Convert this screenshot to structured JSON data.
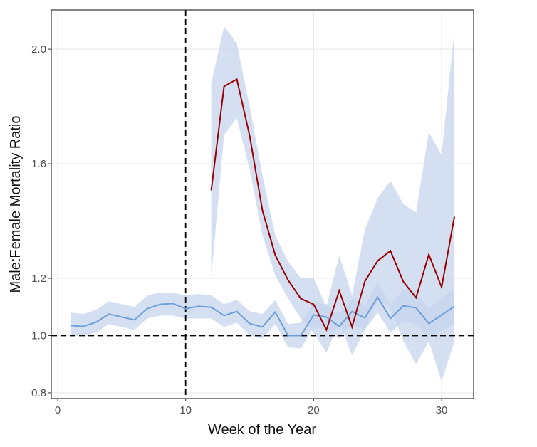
{
  "chart_data": {
    "type": "line",
    "x_label": "Week of the Year",
    "y_label": "Male:Female Mortality Ratio",
    "x": [
      1,
      2,
      3,
      4,
      5,
      6,
      7,
      8,
      9,
      10,
      11,
      12,
      13,
      14,
      15,
      16,
      17,
      18,
      19,
      20,
      21,
      22,
      23,
      24,
      25,
      26,
      27,
      28,
      29,
      30,
      31
    ],
    "series": [
      {
        "color": "#6f9fd8",
        "band_color": "#c5d6ec",
        "values": [
          1.035,
          1.032,
          1.047,
          1.075,
          1.065,
          1.055,
          1.094,
          1.109,
          1.112,
          1.094,
          1.102,
          1.099,
          1.07,
          1.084,
          1.042,
          1.03,
          1.082,
          1.0,
          1.0,
          1.072,
          1.065,
          1.032,
          1.084,
          1.062,
          1.134,
          1.06,
          1.104,
          1.097,
          1.042,
          1.072,
          1.102
        ],
        "lower": [
          1.0,
          1.0,
          1.01,
          1.04,
          1.03,
          1.02,
          1.06,
          1.07,
          1.07,
          1.06,
          1.06,
          1.06,
          1.03,
          1.045,
          1.0,
          0.99,
          1.04,
          0.96,
          0.955,
          1.03,
          1.02,
          0.99,
          1.04,
          1.02,
          1.08,
          1.01,
          1.05,
          1.04,
          0.99,
          1.02,
          1.04
        ],
        "upper": [
          1.08,
          1.075,
          1.09,
          1.12,
          1.11,
          1.1,
          1.14,
          1.15,
          1.15,
          1.14,
          1.145,
          1.14,
          1.11,
          1.125,
          1.085,
          1.075,
          1.125,
          1.04,
          1.045,
          1.115,
          1.11,
          1.075,
          1.13,
          1.105,
          1.19,
          1.11,
          1.16,
          1.155,
          1.095,
          1.13,
          1.165
        ]
      },
      {
        "color": "#9b0000",
        "band_color": "#c5d6ec",
        "values": [
          null,
          null,
          null,
          null,
          null,
          null,
          null,
          null,
          null,
          null,
          null,
          1.507,
          1.87,
          1.895,
          1.698,
          1.437,
          1.281,
          1.194,
          1.129,
          1.109,
          1.02,
          1.157,
          1.03,
          1.189,
          1.261,
          1.296,
          1.189,
          1.132,
          1.283,
          1.169,
          1.415
        ],
        "lower": [
          null,
          null,
          null,
          null,
          null,
          null,
          null,
          null,
          null,
          null,
          null,
          1.2,
          1.7,
          1.76,
          1.58,
          1.35,
          1.21,
          1.13,
          1.06,
          1.01,
          0.94,
          1.05,
          0.93,
          1.02,
          1.12,
          1.1,
          0.98,
          0.9,
          0.98,
          0.84,
          0.98
        ],
        "upper": [
          null,
          null,
          null,
          null,
          null,
          null,
          null,
          null,
          null,
          null,
          null,
          1.88,
          2.08,
          2.02,
          1.8,
          1.56,
          1.35,
          1.26,
          1.2,
          1.2,
          1.1,
          1.28,
          1.14,
          1.37,
          1.48,
          1.54,
          1.46,
          1.43,
          1.71,
          1.63,
          2.07
        ]
      }
    ],
    "xlim": [
      -0.5,
      32.5
    ],
    "ylim": [
      0.78,
      2.137
    ],
    "xticks": [
      0,
      10,
      20,
      30
    ],
    "yticks": [
      {
        "value": 0.8,
        "label": "0.8"
      },
      {
        "value": 1.0,
        "label": "1.0"
      },
      {
        "value": 1.2,
        "label": "1.2"
      },
      {
        "value": 1.6,
        "label": "1.6"
      },
      {
        "value": 2.0,
        "label": "2.0"
      }
    ],
    "reference_lines": {
      "x": 10,
      "y": 1
    },
    "grid": true
  }
}
